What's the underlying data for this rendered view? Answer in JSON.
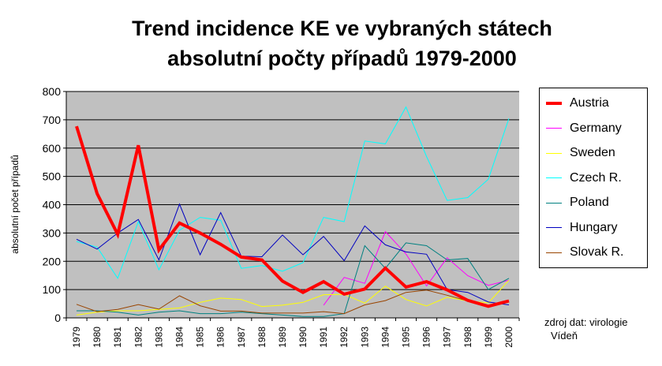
{
  "chart_data": {
    "type": "line",
    "title": "Trend incidence KE ve vybraných státech",
    "subtitle": "absolutní počty případů 1979-2000",
    "ylabel": "absolutní počet případů",
    "xlabel": "",
    "ylim": [
      0,
      800
    ],
    "yticks": [
      0,
      100,
      200,
      300,
      400,
      500,
      600,
      700,
      800
    ],
    "categories": [
      "1979",
      "1980",
      "1981",
      "1982",
      "1983",
      "1984",
      "1985",
      "1986",
      "1987",
      "1988",
      "1989",
      "1990",
      "1991",
      "1992",
      "1993",
      "1994",
      "1995",
      "1996",
      "1997",
      "1998",
      "1999",
      "2000"
    ],
    "grid": true,
    "legend_position": "right",
    "series": [
      {
        "name": "Austria",
        "color": "#ff0000",
        "width": 4,
        "values": [
          677,
          439,
          295,
          610,
          240,
          335,
          300,
          260,
          215,
          205,
          130,
          90,
          128,
          84,
          102,
          176,
          109,
          128,
          99,
          62,
          41,
          60
        ]
      },
      {
        "name": "Germany",
        "color": "#ff00ff",
        "width": 1,
        "values": [
          null,
          null,
          null,
          null,
          null,
          null,
          null,
          null,
          null,
          null,
          null,
          null,
          45,
          143,
          122,
          305,
          226,
          113,
          212,
          149,
          115,
          133
        ]
      },
      {
        "name": "Sweden",
        "color": "#ffff00",
        "width": 1,
        "values": [
          10,
          20,
          25,
          25,
          30,
          35,
          55,
          70,
          65,
          40,
          45,
          55,
          82,
          83,
          52,
          112,
          65,
          42,
          73,
          60,
          53,
          133
        ]
      },
      {
        "name": "Czech R.",
        "color": "#00ffff",
        "width": 1,
        "values": [
          270,
          250,
          140,
          340,
          170,
          310,
          355,
          345,
          175,
          185,
          165,
          195,
          355,
          340,
          625,
          615,
          745,
          570,
          415,
          425,
          490,
          705
        ]
      },
      {
        "name": "Poland",
        "color": "#008080",
        "width": 1,
        "values": [
          25,
          25,
          20,
          10,
          20,
          25,
          15,
          15,
          20,
          15,
          10,
          5,
          5,
          15,
          255,
          175,
          265,
          255,
          205,
          210,
          100,
          140
        ]
      },
      {
        "name": "Hungary",
        "color": "#0000c0",
        "width": 1,
        "values": [
          278,
          243,
          300,
          348,
          205,
          402,
          223,
          372,
          218,
          216,
          293,
          223,
          288,
          202,
          325,
          258,
          233,
          225,
          100,
          90,
          56,
          46
        ]
      },
      {
        "name": "Slovak R.",
        "color": "#994400",
        "width": 1,
        "values": [
          48,
          22,
          30,
          47,
          31,
          78,
          43,
          24,
          24,
          17,
          17,
          17,
          22,
          15,
          46,
          61,
          90,
          98,
          80,
          60,
          45,
          60
        ]
      }
    ]
  },
  "source": {
    "line1": "zdroj dat: virologie",
    "line2": "Vídeň"
  }
}
